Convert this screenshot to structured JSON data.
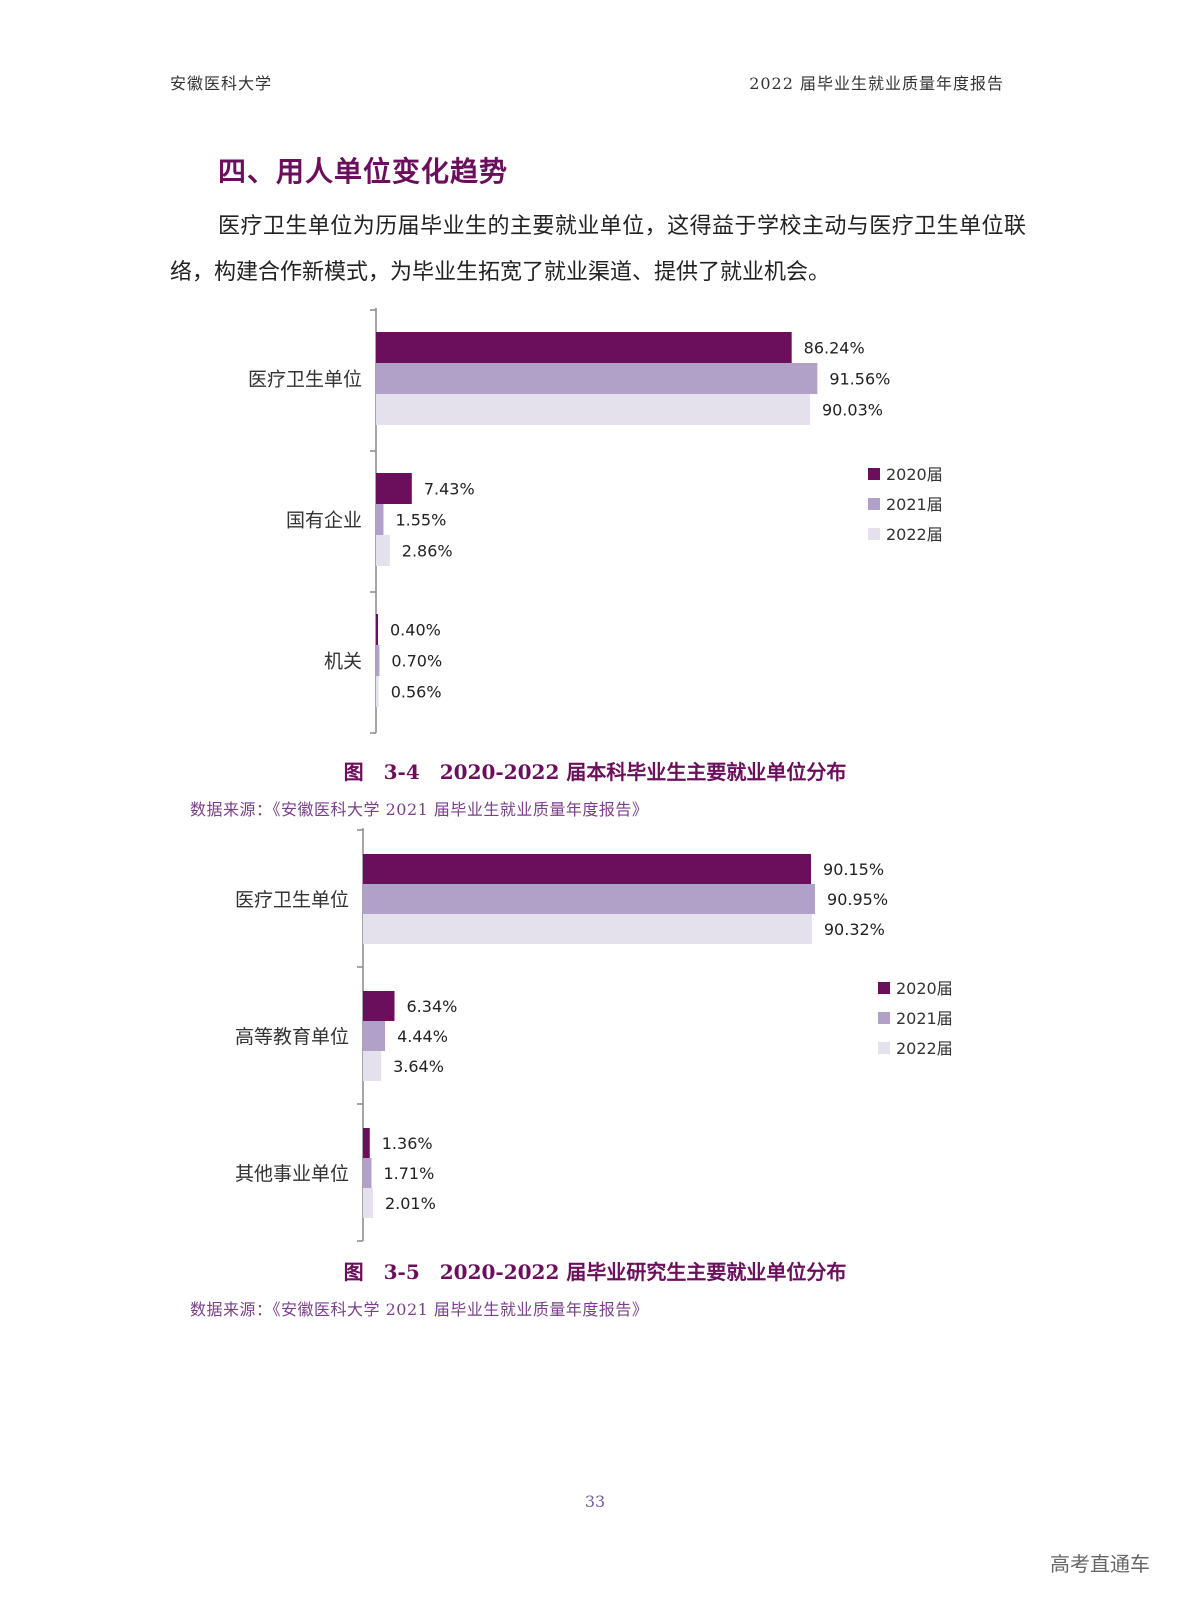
{
  "header": {
    "left": "安徽医科大学",
    "right": "2022 届毕业生就业质量年度报告"
  },
  "section_title": "四、用人单位变化趋势",
  "body_text": "医疗卫生单位为历届毕业生的主要就业单位，这得益于学校主动与医疗卫生单位联络，构建合作新模式，为毕业生拓宽了就业渠道、提供了就业机会。",
  "colors": {
    "2020届": "#6b0f5c",
    "2021届": "#b1a0c7",
    "2022届": "#e4e0ec",
    "title": "#6b0f5c"
  },
  "chart_data": [
    {
      "type": "bar",
      "orientation": "horizontal",
      "categories": [
        "医疗卫生单位",
        "国有企业",
        "机关"
      ],
      "series": [
        {
          "name": "2020届",
          "values": [
            86.24,
            7.43,
            0.4
          ],
          "labels": [
            "86.24%",
            "7.43%",
            "0.40%"
          ]
        },
        {
          "name": "2021届",
          "values": [
            91.56,
            1.55,
            0.7
          ],
          "labels": [
            "91.56%",
            "1.55%",
            "0.70%"
          ]
        },
        {
          "name": "2022届",
          "values": [
            90.03,
            2.86,
            0.56
          ],
          "labels": [
            "90.03%",
            "2.86%",
            "0.56%"
          ]
        }
      ],
      "unit": "%",
      "xlim": [
        0,
        100
      ],
      "legend": "right",
      "grid": false,
      "caption": "图　3-4　2020-2022 届本科毕业生主要就业单位分布",
      "source": "数据来源：《安徽医科大学 2021 届毕业生就业质量年度报告》"
    },
    {
      "type": "bar",
      "orientation": "horizontal",
      "categories": [
        "医疗卫生单位",
        "高等教育单位",
        "其他事业单位"
      ],
      "series": [
        {
          "name": "2020届",
          "values": [
            90.15,
            6.34,
            1.36
          ],
          "labels": [
            "90.15%",
            "6.34%",
            "1.36%"
          ]
        },
        {
          "name": "2021届",
          "values": [
            90.95,
            4.44,
            1.71
          ],
          "labels": [
            "90.95%",
            "4.44%",
            "1.71%"
          ]
        },
        {
          "name": "2022届",
          "values": [
            90.32,
            3.64,
            2.01
          ],
          "labels": [
            "90.32%",
            "3.64%",
            "2.01%"
          ]
        }
      ],
      "unit": "%",
      "xlim": [
        0,
        100
      ],
      "legend": "right",
      "grid": false,
      "caption": "图　3-5　2020-2022 届毕业研究生主要就业单位分布",
      "source": "数据来源：《安徽医科大学 2021 届毕业生就业质量年度报告》"
    }
  ],
  "page_number": "33",
  "watermark": "高考直通车"
}
